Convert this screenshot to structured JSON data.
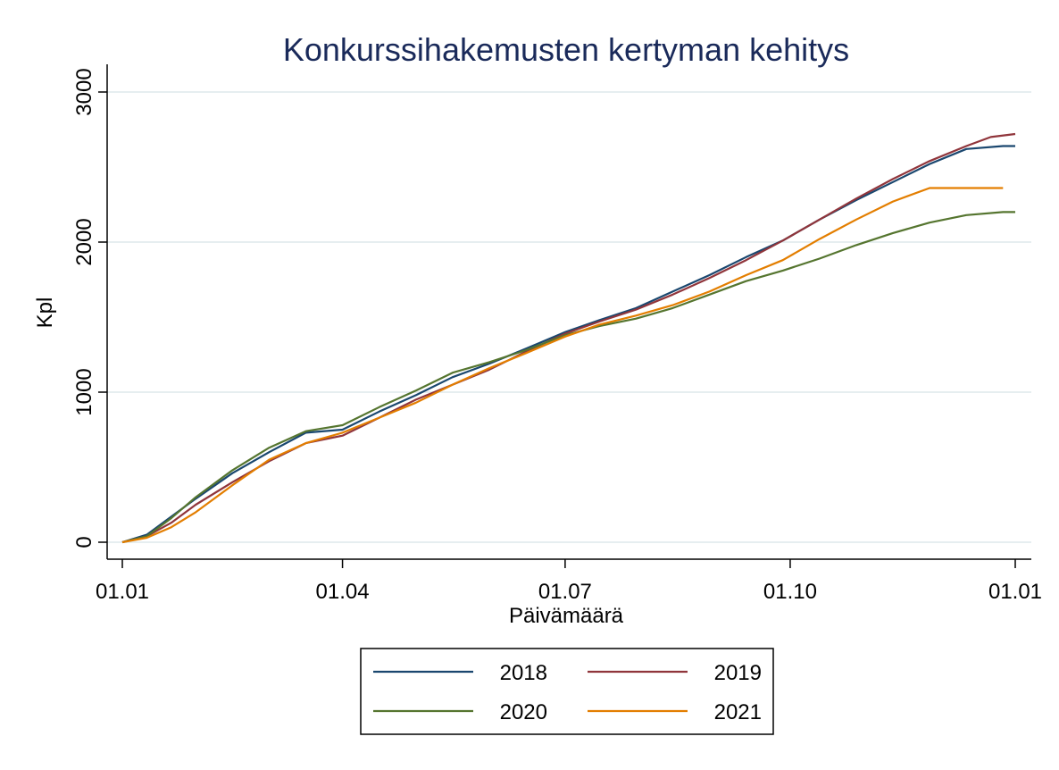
{
  "chart_data": {
    "type": "line",
    "title": "Konkurssihakemusten kertyman kehitys",
    "xlabel": "Päivämäärä",
    "ylabel": "Kpl",
    "x_unit": "day of year",
    "xlim": [
      0,
      365
    ],
    "ylim": [
      0,
      3000
    ],
    "x_ticks": [
      {
        "value": 0,
        "label": "01.01"
      },
      {
        "value": 90,
        "label": "01.04"
      },
      {
        "value": 181,
        "label": "01.07"
      },
      {
        "value": 273,
        "label": "01.10"
      },
      {
        "value": 365,
        "label": "01.01"
      }
    ],
    "y_ticks": [
      {
        "value": 0,
        "label": "0"
      },
      {
        "value": 1000,
        "label": "1000"
      },
      {
        "value": 2000,
        "label": "2000"
      },
      {
        "value": 3000,
        "label": "3000"
      }
    ],
    "grid": true,
    "legend_position": "bottom",
    "series": [
      {
        "name": "2018",
        "color": "#1a476f",
        "points": [
          [
            0,
            0
          ],
          [
            10,
            50
          ],
          [
            20,
            170
          ],
          [
            30,
            290
          ],
          [
            45,
            460
          ],
          [
            60,
            600
          ],
          [
            75,
            730
          ],
          [
            90,
            750
          ],
          [
            105,
            870
          ],
          [
            120,
            980
          ],
          [
            135,
            1100
          ],
          [
            150,
            1190
          ],
          [
            165,
            1290
          ],
          [
            181,
            1400
          ],
          [
            195,
            1480
          ],
          [
            210,
            1560
          ],
          [
            225,
            1670
          ],
          [
            240,
            1780
          ],
          [
            255,
            1900
          ],
          [
            270,
            2010
          ],
          [
            285,
            2150
          ],
          [
            300,
            2280
          ],
          [
            315,
            2400
          ],
          [
            330,
            2520
          ],
          [
            345,
            2620
          ],
          [
            360,
            2640
          ],
          [
            365,
            2640
          ]
        ]
      },
      {
        "name": "2019",
        "color": "#90353b",
        "points": [
          [
            0,
            0
          ],
          [
            10,
            40
          ],
          [
            20,
            130
          ],
          [
            30,
            250
          ],
          [
            45,
            400
          ],
          [
            60,
            540
          ],
          [
            75,
            660
          ],
          [
            90,
            710
          ],
          [
            105,
            830
          ],
          [
            120,
            950
          ],
          [
            135,
            1050
          ],
          [
            150,
            1150
          ],
          [
            165,
            1270
          ],
          [
            181,
            1390
          ],
          [
            195,
            1470
          ],
          [
            210,
            1550
          ],
          [
            225,
            1650
          ],
          [
            240,
            1760
          ],
          [
            255,
            1880
          ],
          [
            270,
            2010
          ],
          [
            285,
            2150
          ],
          [
            300,
            2290
          ],
          [
            315,
            2420
          ],
          [
            330,
            2540
          ],
          [
            345,
            2640
          ],
          [
            355,
            2700
          ],
          [
            365,
            2720
          ]
        ]
      },
      {
        "name": "2020",
        "color": "#55752f",
        "points": [
          [
            0,
            0
          ],
          [
            10,
            40
          ],
          [
            20,
            160
          ],
          [
            30,
            300
          ],
          [
            45,
            480
          ],
          [
            60,
            630
          ],
          [
            75,
            740
          ],
          [
            90,
            780
          ],
          [
            105,
            900
          ],
          [
            120,
            1010
          ],
          [
            135,
            1130
          ],
          [
            150,
            1200
          ],
          [
            165,
            1280
          ],
          [
            181,
            1380
          ],
          [
            195,
            1440
          ],
          [
            210,
            1490
          ],
          [
            225,
            1560
          ],
          [
            240,
            1650
          ],
          [
            255,
            1740
          ],
          [
            270,
            1810
          ],
          [
            285,
            1890
          ],
          [
            300,
            1980
          ],
          [
            315,
            2060
          ],
          [
            330,
            2130
          ],
          [
            345,
            2180
          ],
          [
            360,
            2200
          ],
          [
            365,
            2200
          ]
        ]
      },
      {
        "name": "2021",
        "color": "#e37e00",
        "points": [
          [
            0,
            0
          ],
          [
            10,
            30
          ],
          [
            20,
            100
          ],
          [
            30,
            200
          ],
          [
            45,
            380
          ],
          [
            60,
            550
          ],
          [
            75,
            660
          ],
          [
            90,
            730
          ],
          [
            105,
            830
          ],
          [
            120,
            930
          ],
          [
            135,
            1050
          ],
          [
            150,
            1160
          ],
          [
            165,
            1260
          ],
          [
            181,
            1370
          ],
          [
            195,
            1450
          ],
          [
            210,
            1510
          ],
          [
            225,
            1580
          ],
          [
            240,
            1670
          ],
          [
            255,
            1780
          ],
          [
            270,
            1880
          ],
          [
            285,
            2020
          ],
          [
            300,
            2150
          ],
          [
            315,
            2270
          ],
          [
            330,
            2360
          ],
          [
            345,
            2360
          ],
          [
            360,
            2360
          ]
        ]
      }
    ]
  }
}
